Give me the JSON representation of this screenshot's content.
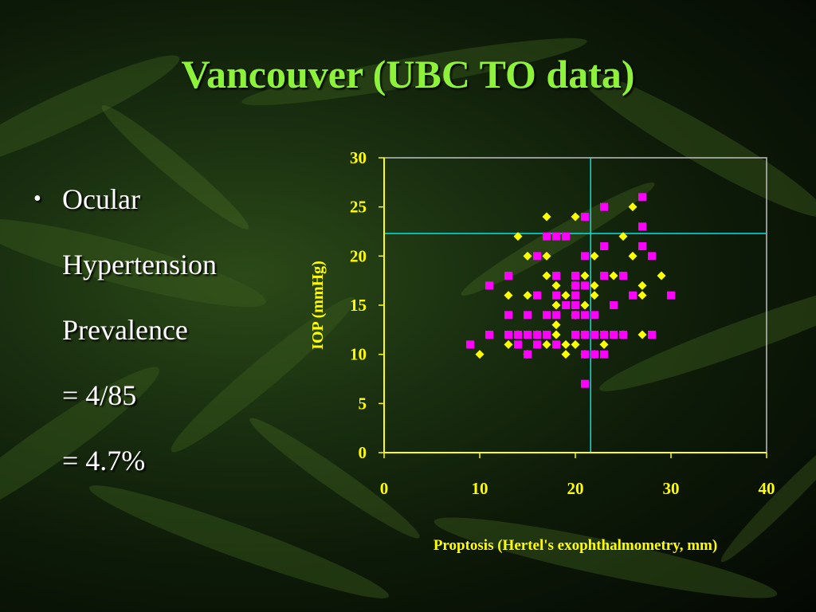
{
  "slide": {
    "title": "Vancouver (UBC TO data)",
    "bullet": {
      "line1": "Ocular",
      "line2": "Hypertension",
      "line3": "Prevalence",
      "line4": "= 4/85",
      "line5": "= 4.7%"
    }
  },
  "colors": {
    "title": "#8ef23a",
    "text": "#ffffff",
    "axis": "#ffff00",
    "frame": "#c0c0c0",
    "ref_lines": "#00e5e5",
    "series_diamond": "#ffff00",
    "series_square": "#ff00ff"
  },
  "chart_data": {
    "type": "scatter",
    "xlabel": "Proptosis (Hertel's exophthalmometry, mm)",
    "ylabel": "IOP (mmHg)",
    "xlim": [
      0,
      40
    ],
    "ylim": [
      0,
      30
    ],
    "xticks": [
      0,
      10,
      20,
      30,
      40
    ],
    "yticks": [
      0,
      5,
      10,
      15,
      20,
      25,
      30
    ],
    "grid": false,
    "reference_lines": {
      "x": 21.6,
      "y": 22.3
    },
    "series": [
      {
        "marker": "diamond",
        "points": [
          [
            10,
            10
          ],
          [
            13,
            11
          ],
          [
            13,
            16
          ],
          [
            14,
            22
          ],
          [
            14,
            12
          ],
          [
            15,
            16
          ],
          [
            15,
            20
          ],
          [
            15,
            10
          ],
          [
            16,
            12
          ],
          [
            17,
            24
          ],
          [
            17,
            20
          ],
          [
            17,
            18
          ],
          [
            17,
            11
          ],
          [
            18,
            17
          ],
          [
            18,
            15
          ],
          [
            18,
            13
          ],
          [
            18,
            12
          ],
          [
            19,
            11
          ],
          [
            19,
            10
          ],
          [
            19,
            16
          ],
          [
            20,
            24
          ],
          [
            20,
            17
          ],
          [
            20,
            14
          ],
          [
            20,
            11
          ],
          [
            21,
            18
          ],
          [
            21,
            15
          ],
          [
            21,
            12
          ],
          [
            21,
            10
          ],
          [
            22,
            20
          ],
          [
            22,
            17
          ],
          [
            22,
            16
          ],
          [
            22,
            10
          ],
          [
            23,
            11
          ],
          [
            23,
            12
          ],
          [
            24,
            18
          ],
          [
            25,
            22
          ],
          [
            25,
            12
          ],
          [
            26,
            25
          ],
          [
            26,
            20
          ],
          [
            27,
            17
          ],
          [
            27,
            16
          ],
          [
            27,
            12
          ],
          [
            29,
            18
          ]
        ]
      },
      {
        "marker": "square",
        "points": [
          [
            9,
            11
          ],
          [
            11,
            17
          ],
          [
            11,
            12
          ],
          [
            13,
            18
          ],
          [
            13,
            14
          ],
          [
            13,
            12
          ],
          [
            14,
            12
          ],
          [
            14,
            11
          ],
          [
            15,
            14
          ],
          [
            15,
            12
          ],
          [
            15,
            10
          ],
          [
            16,
            20
          ],
          [
            16,
            16
          ],
          [
            16,
            12
          ],
          [
            16,
            11
          ],
          [
            17,
            22
          ],
          [
            17,
            14
          ],
          [
            17,
            12
          ],
          [
            18,
            22
          ],
          [
            18,
            18
          ],
          [
            18,
            16
          ],
          [
            18,
            14
          ],
          [
            18,
            11
          ],
          [
            19,
            22
          ],
          [
            19,
            15
          ],
          [
            20,
            18
          ],
          [
            20,
            17
          ],
          [
            20,
            16
          ],
          [
            20,
            15
          ],
          [
            20,
            14
          ],
          [
            20,
            12
          ],
          [
            21,
            24
          ],
          [
            21,
            20
          ],
          [
            21,
            17
          ],
          [
            21,
            14
          ],
          [
            21,
            12
          ],
          [
            21,
            10
          ],
          [
            21,
            7
          ],
          [
            22,
            14
          ],
          [
            22,
            12
          ],
          [
            22,
            10
          ],
          [
            23,
            25
          ],
          [
            23,
            21
          ],
          [
            23,
            18
          ],
          [
            23,
            12
          ],
          [
            23,
            10
          ],
          [
            24,
            15
          ],
          [
            24,
            12
          ],
          [
            25,
            18
          ],
          [
            25,
            12
          ],
          [
            26,
            16
          ],
          [
            27,
            26
          ],
          [
            27,
            23
          ],
          [
            27,
            21
          ],
          [
            28,
            20
          ],
          [
            28,
            12
          ],
          [
            30,
            16
          ]
        ]
      }
    ]
  }
}
